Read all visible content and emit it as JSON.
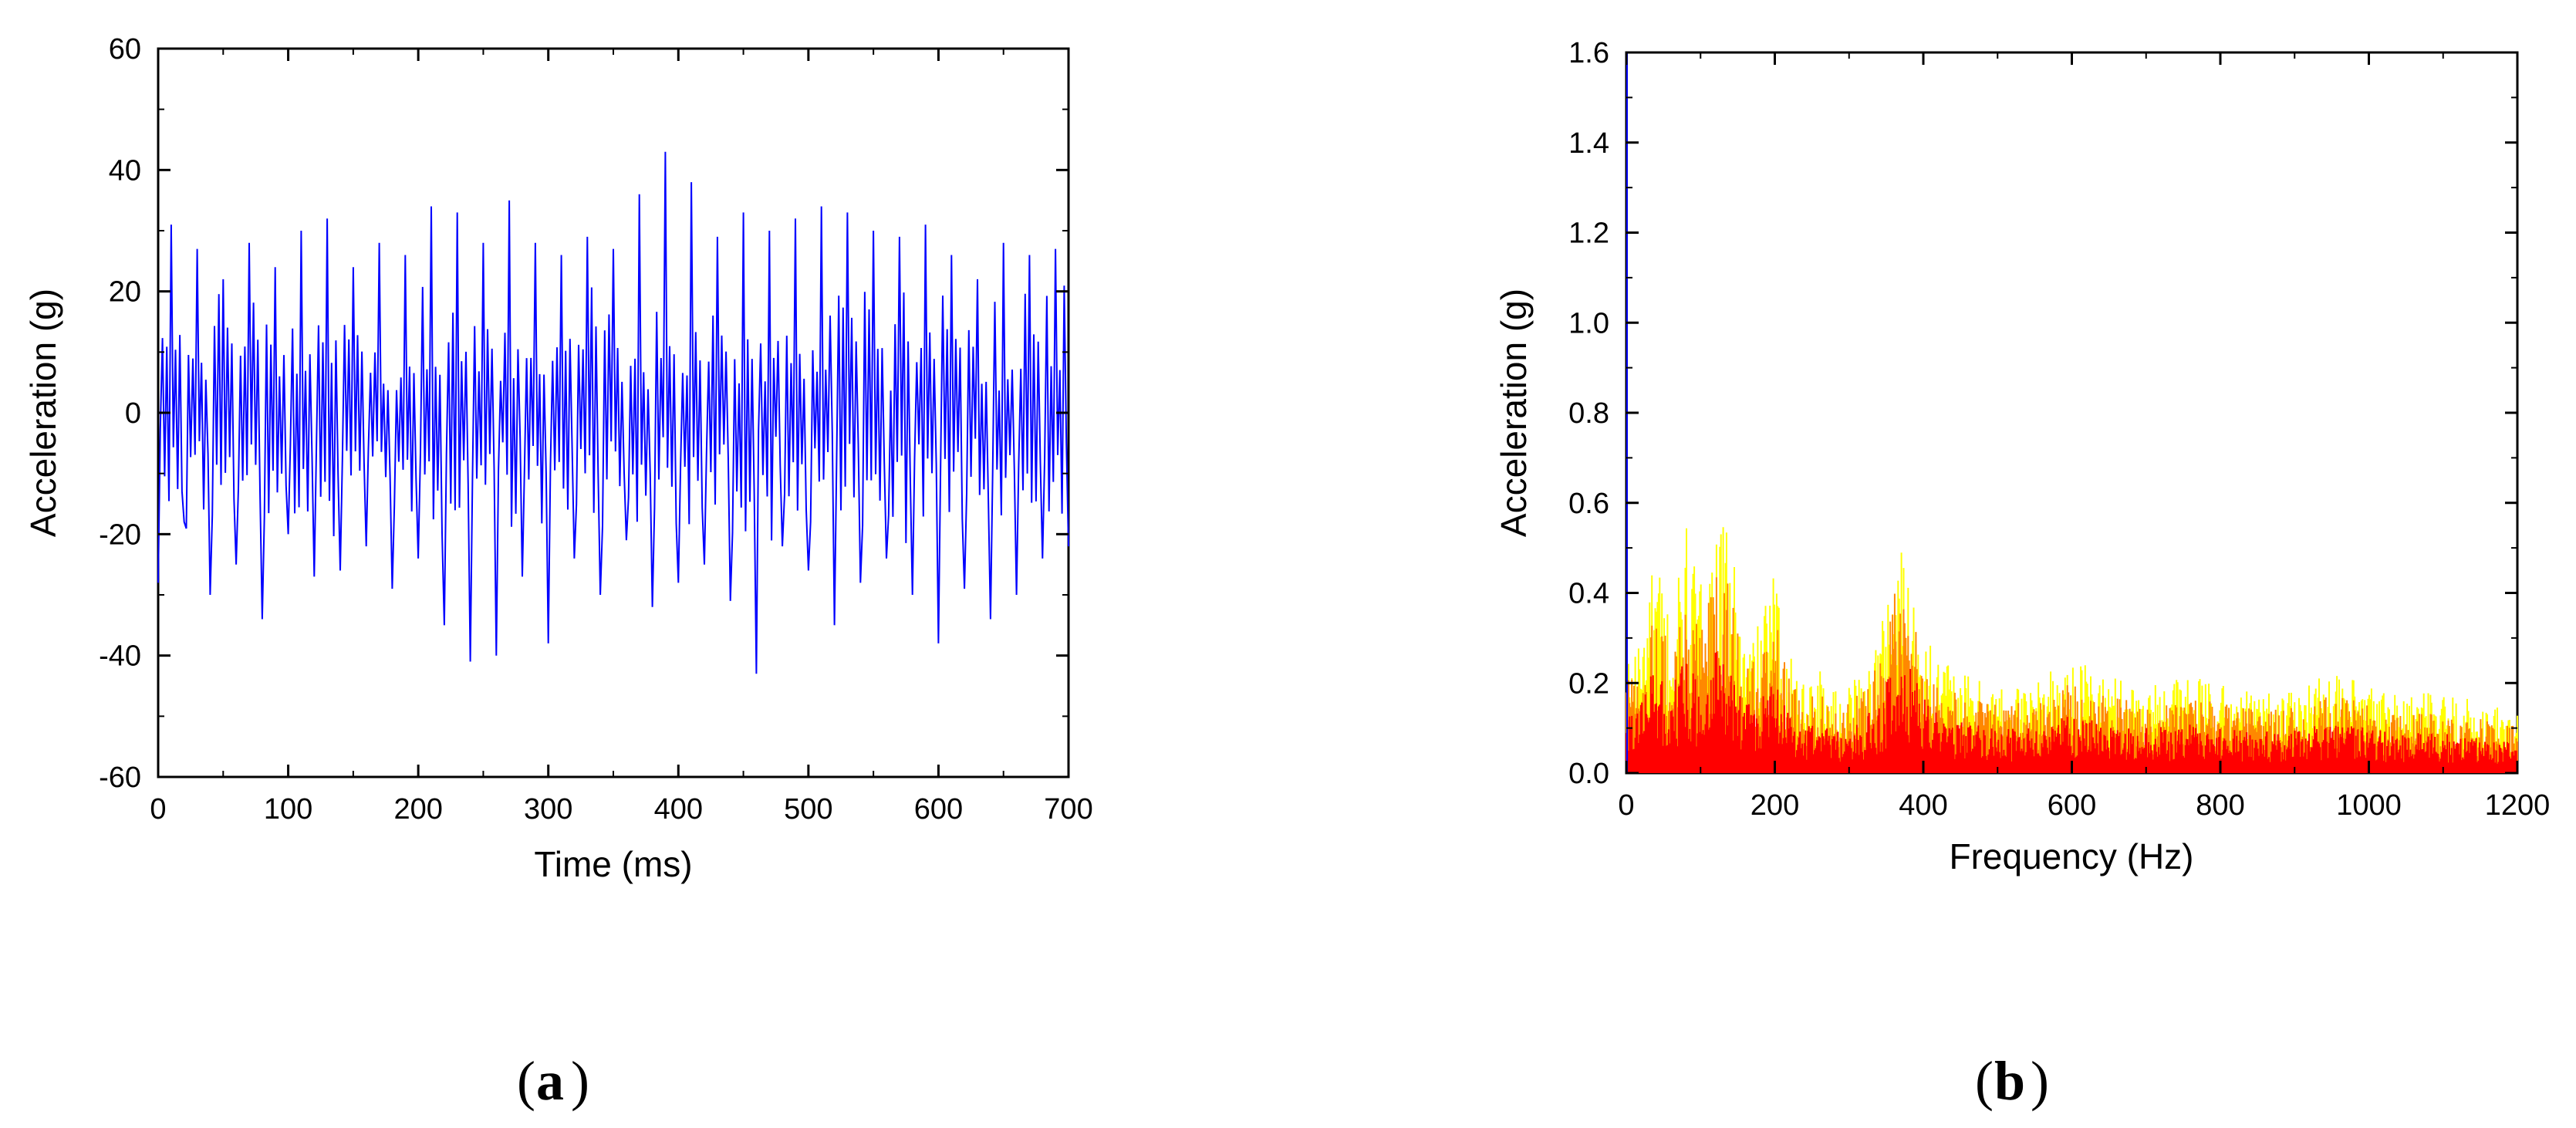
{
  "chart_data": [
    {
      "type": "line",
      "panel_label": "a",
      "xlabel": "Time (ms)",
      "ylabel": "Acceleration (g)",
      "xlim": [
        0,
        700
      ],
      "ylim": [
        -60,
        60
      ],
      "x_ticks": [
        0,
        100,
        200,
        300,
        400,
        500,
        600,
        700
      ],
      "y_ticks": [
        -60,
        -40,
        -20,
        0,
        20,
        40,
        60
      ],
      "grid": false,
      "series_color": "#0000ff",
      "series": [
        {
          "x": [
            0,
            10,
            20,
            30,
            40,
            50,
            60,
            70,
            80,
            90,
            100,
            110,
            120,
            130,
            140,
            150,
            160,
            170,
            180,
            190,
            200,
            210,
            220,
            230,
            240,
            250,
            260,
            270,
            280,
            290,
            300,
            310,
            320,
            330,
            340,
            350,
            360,
            370,
            380,
            390,
            400,
            410,
            420,
            430,
            440,
            450,
            460,
            470,
            480,
            490,
            500,
            510,
            520,
            530,
            540,
            550,
            560,
            570,
            580,
            590,
            600,
            610,
            620,
            630,
            640,
            650,
            660,
            670,
            680,
            690,
            700
          ],
          "y": [
            -28,
            31,
            -18,
            27,
            -30,
            22,
            -25,
            28,
            -34,
            24,
            -20,
            30,
            -27,
            32,
            -26,
            24,
            -22,
            28,
            -29,
            26,
            -24,
            34,
            -35,
            33,
            -41,
            28,
            -40,
            35,
            -27,
            28,
            -38,
            26,
            -24,
            29,
            -30,
            27,
            -21,
            36,
            -32,
            43,
            -28,
            38,
            -25,
            29,
            -31,
            33,
            -43,
            30,
            -22,
            32,
            -26,
            34,
            -35,
            33,
            -28,
            30,
            -24,
            29,
            -30,
            31,
            -38,
            26,
            -29,
            22,
            -34,
            28,
            -30,
            26,
            -24,
            27,
            -22
          ]
        }
      ]
    },
    {
      "type": "line",
      "panel_label": "b",
      "xlabel": "Frequency (Hz)",
      "ylabel": "Acceleration (g)",
      "xlim": [
        0,
        1200
      ],
      "ylim": [
        0.0,
        1.6
      ],
      "x_ticks": [
        0,
        200,
        400,
        600,
        800,
        1000,
        1200
      ],
      "y_ticks": [
        0.0,
        0.2,
        0.4,
        0.6,
        0.8,
        1.0,
        1.2,
        1.4,
        1.6
      ],
      "y_tick_labels": [
        "0.0",
        "0.2",
        "0.4",
        "0.6",
        "0.8",
        "1.0",
        "1.2",
        "1.4",
        "1.6"
      ],
      "grid": false,
      "colors": {
        "high": "#ffff00",
        "mid": "#ff8800",
        "low": "#ff0000"
      },
      "series": [
        {
          "x": [
            0,
            5,
            20,
            40,
            60,
            80,
            100,
            120,
            140,
            160,
            180,
            200,
            220,
            240,
            260,
            280,
            300,
            320,
            340,
            360,
            380,
            400,
            420,
            440,
            460,
            500,
            550,
            600,
            650,
            700,
            750,
            800,
            850,
            900,
            950,
            1000,
            1050,
            1100,
            1150,
            1200
          ],
          "y": [
            0.24,
            0.3,
            0.32,
            0.5,
            0.36,
            0.55,
            0.42,
            0.56,
            0.54,
            0.3,
            0.34,
            0.46,
            0.26,
            0.22,
            0.24,
            0.18,
            0.2,
            0.24,
            0.32,
            0.52,
            0.5,
            0.34,
            0.26,
            0.24,
            0.22,
            0.2,
            0.2,
            0.26,
            0.22,
            0.2,
            0.22,
            0.2,
            0.18,
            0.2,
            0.22,
            0.2,
            0.18,
            0.18,
            0.16,
            0.14
          ]
        }
      ]
    }
  ]
}
